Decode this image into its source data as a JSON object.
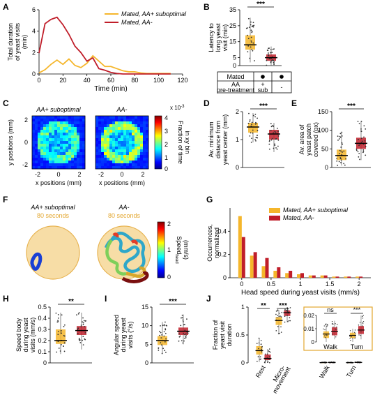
{
  "colors": {
    "orange": "#F5B62B",
    "red": "#C01E2A",
    "orange_text": "#E3A72F",
    "patch": "#F7DDA6",
    "patch_edge": "#E7B24E"
  },
  "panels": {
    "A": {
      "label": "A"
    },
    "B": {
      "label": "B"
    },
    "C": {
      "label": "C"
    },
    "D": {
      "label": "D"
    },
    "E": {
      "label": "E"
    },
    "F": {
      "label": "F"
    },
    "G": {
      "label": "G"
    },
    "H": {
      "label": "H"
    },
    "I": {
      "label": "I"
    },
    "J": {
      "label": "J"
    }
  },
  "panelB_table": {
    "row1": "Mated",
    "row2a": "AA",
    "row2b": "pre-treatment",
    "plus": "+",
    "sub": "sub",
    "minus": "-"
  },
  "panelC": {
    "title_left": "AA+ suboptimal",
    "title_right": "AA-",
    "ylabel": "y positions (mm)",
    "xlabel": "x positions (mm)",
    "xticks": [
      "-2",
      "0",
      "2"
    ],
    "yticks": [
      "2",
      "0",
      "-2"
    ],
    "cbar_exp": "x 10",
    "cbar_exp_sup": "-3",
    "cbar_label1": "Fraction of time",
    "cbar_label2": "in xy bin",
    "cbar_ticks": [
      "4",
      "3",
      "2",
      "1",
      "0"
    ]
  },
  "panelF": {
    "title_left": "AA+ suboptimal",
    "title_right": "AA-",
    "sub_left": "80 seconds",
    "sub_right": "80 seconds",
    "cbar_label": "Speed",
    "cbar_sub": "head",
    "cbar_unit": "(mm/s)",
    "cbar_ticks": [
      "2",
      "1",
      "0"
    ]
  },
  "panelJ": {
    "inset_sig_walk": "ns",
    "inset_sig_turn": "***",
    "inset_cats": [
      "Walk",
      "Turn"
    ],
    "inset_yticks": [
      "0.02",
      "0.01",
      "0"
    ]
  },
  "chart_data": [
    {
      "panel": "A",
      "type": "line",
      "xlabel": "Time (min)",
      "ylabel": "Total duration of yeast visits (min)",
      "xlim": [
        0,
        120
      ],
      "ylim": [
        0,
        6
      ],
      "xticks": [
        0,
        20,
        40,
        60,
        80,
        100,
        120
      ],
      "yticks": [
        0,
        2,
        4,
        6
      ],
      "legend_position": "top-right",
      "series": [
        {
          "name": "Mated, AA+ suboptimal",
          "color": "#F5B62B",
          "x": [
            0,
            5,
            10,
            15,
            20,
            25,
            30,
            35,
            40,
            45,
            50,
            55,
            60,
            65,
            70,
            75,
            80,
            85,
            90,
            95,
            100,
            105,
            110
          ],
          "y": [
            0.1,
            0.4,
            0.9,
            1.3,
            0.9,
            1.4,
            0.8,
            0.6,
            1.0,
            1.7,
            1.2,
            0.7,
            0.7,
            0.5,
            0.3,
            0.2,
            0.2,
            0.1,
            0.05,
            0.05,
            0.05,
            0.05,
            0.05
          ]
        },
        {
          "name": "Mated, AA-",
          "color": "#C01E2A",
          "x": [
            0,
            5,
            10,
            15,
            20,
            25,
            30,
            35,
            40,
            45,
            50,
            55,
            60,
            65,
            70,
            75,
            80,
            85,
            90,
            95,
            100,
            105,
            110
          ],
          "y": [
            1.95,
            4.7,
            5.1,
            5.3,
            4.6,
            3.7,
            2.6,
            2.0,
            1.2,
            1.5,
            0.5,
            0.35,
            0.15,
            0.05,
            0.0,
            0.0,
            0.0,
            0.0,
            0.0,
            0.0,
            0.0,
            0.0,
            0.0
          ]
        }
      ]
    },
    {
      "panel": "B",
      "type": "box",
      "ylabel": "Latency to long yeast visit (min)",
      "ylim": [
        0,
        35
      ],
      "yticks": [
        0,
        5,
        15,
        25,
        35
      ],
      "significance": "***",
      "boxes": [
        {
          "group": "AA+ sub",
          "color": "#F5B62B",
          "q1": 10,
          "median": 13,
          "q3": 19,
          "whisker_low": 2,
          "whisker_high": 30
        },
        {
          "group": "AA-",
          "color": "#C01E2A",
          "q1": 3,
          "median": 5,
          "q3": 7,
          "whisker_low": 0,
          "whisker_high": 12
        }
      ]
    },
    {
      "panel": "C",
      "type": "heatmap",
      "xlim": [
        -2.5,
        2.5
      ],
      "ylim": [
        -2.5,
        2.5
      ],
      "clim": [
        0,
        0.004
      ]
    },
    {
      "panel": "D",
      "type": "box",
      "ylabel": "Av. minimum distance from yeast center (mm)",
      "ylim": [
        0,
        2
      ],
      "yticks": [
        0,
        1,
        2
      ],
      "significance": "***",
      "boxes": [
        {
          "group": "AA+ sub",
          "color": "#F5B62B",
          "q1": 1.25,
          "median": 1.45,
          "q3": 1.6,
          "whisker_low": 0.9,
          "whisker_high": 1.95
        },
        {
          "group": "AA-",
          "color": "#C01E2A",
          "q1": 1.0,
          "median": 1.2,
          "q3": 1.35,
          "whisker_low": 0.55,
          "whisker_high": 1.6
        }
      ]
    },
    {
      "panel": "E",
      "type": "box",
      "ylabel": "Av. area of yeast patch covered (px)",
      "ylim": [
        0,
        150
      ],
      "yticks": [
        0,
        50,
        100,
        150
      ],
      "significance": "***",
      "boxes": [
        {
          "group": "AA+ sub",
          "color": "#F5B62B",
          "q1": 20,
          "median": 32,
          "q3": 48,
          "whisker_low": 5,
          "whisker_high": 95
        },
        {
          "group": "AA-",
          "color": "#C01E2A",
          "q1": 50,
          "median": 65,
          "q3": 80,
          "whisker_low": 20,
          "whisker_high": 125
        }
      ]
    },
    {
      "panel": "G",
      "type": "bar",
      "xlabel": "Head speed during yeast visits (mm/s)",
      "ylabel": "Occurrences, normalized",
      "xlim": [
        -0.2,
        2.2
      ],
      "ylim": [
        0,
        0.6
      ],
      "xticks": [
        0,
        0.5,
        1,
        1.5,
        2
      ],
      "yticks": [
        0,
        0.2,
        0.4
      ],
      "legend_position": "top-right",
      "x": [
        0,
        0.2,
        0.4,
        0.6,
        0.8,
        1.0,
        1.2,
        1.4,
        1.6,
        1.8,
        2.0
      ],
      "series": [
        {
          "name": "Mated, AA+ suboptimal",
          "color": "#F5B62B",
          "values": [
            0.53,
            0.19,
            0.1,
            0.06,
            0.04,
            0.03,
            0.02,
            0.02,
            0.01,
            0.01,
            0.01
          ]
        },
        {
          "name": "Mated, AA-",
          "color": "#C01E2A",
          "values": [
            0.35,
            0.22,
            0.17,
            0.09,
            0.06,
            0.04,
            0.02,
            0.02,
            0.01,
            0.01,
            0.01
          ]
        }
      ]
    },
    {
      "panel": "H",
      "type": "box",
      "ylabel": "Speed body during yeast visits (mm/s)",
      "ylim": [
        0,
        0.5
      ],
      "yticks": [
        0,
        0.1,
        0.2,
        0.3,
        0.4,
        0.5
      ],
      "significance": "**",
      "boxes": [
        {
          "group": "AA+ sub",
          "color": "#F5B62B",
          "q1": 0.17,
          "median": 0.2,
          "q3": 0.3,
          "whisker_low": 0.08,
          "whisker_high": 0.45
        },
        {
          "group": "AA-",
          "color": "#C01E2A",
          "q1": 0.25,
          "median": 0.29,
          "q3": 0.33,
          "whisker_low": 0.12,
          "whisker_high": 0.45
        }
      ]
    },
    {
      "panel": "I",
      "type": "box",
      "ylabel": "Angular speed during yeast visits (°/s)",
      "ylim": [
        0,
        15
      ],
      "yticks": [
        0,
        5,
        10,
        15
      ],
      "significance": "***",
      "boxes": [
        {
          "group": "AA+ sub",
          "color": "#F5B62B",
          "q1": 4.8,
          "median": 6,
          "q3": 7.2,
          "whisker_low": 2.5,
          "whisker_high": 11
        },
        {
          "group": "AA-",
          "color": "#C01E2A",
          "q1": 7.5,
          "median": 8.5,
          "q3": 9.5,
          "whisker_low": 5,
          "whisker_high": 13
        }
      ]
    },
    {
      "panel": "J",
      "type": "box",
      "ylabel": "Fraction of yeast visit duration",
      "ylim": [
        0,
        1
      ],
      "yticks": [
        0,
        0.5,
        1
      ],
      "categories": [
        "Rest",
        "Micro-movement",
        "Walk",
        "Turn"
      ],
      "significance": [
        "**",
        "***"
      ],
      "groups": [
        {
          "category": "Rest",
          "color": "#F5B62B",
          "q1": 0.15,
          "median": 0.22,
          "q3": 0.3,
          "whisker_low": 0.02,
          "whisker_high": 0.45
        },
        {
          "category": "Rest",
          "color": "#C01E2A",
          "q1": 0.05,
          "median": 0.08,
          "q3": 0.15,
          "whisker_low": 0.0,
          "whisker_high": 0.25
        },
        {
          "category": "Micro-movement",
          "color": "#F5B62B",
          "q1": 0.68,
          "median": 0.76,
          "q3": 0.82,
          "whisker_low": 0.52,
          "whisker_high": 0.95
        },
        {
          "category": "Micro-movement",
          "color": "#C01E2A",
          "q1": 0.84,
          "median": 0.9,
          "q3": 0.94,
          "whisker_low": 0.73,
          "whisker_high": 1.0
        },
        {
          "category": "Walk",
          "color": "#F5B62B",
          "q1": 0.003,
          "median": 0.006,
          "q3": 0.008,
          "whisker_low": 0.0,
          "whisker_high": 0.014
        },
        {
          "category": "Walk",
          "color": "#C01E2A",
          "q1": 0.005,
          "median": 0.008,
          "q3": 0.011,
          "whisker_low": 0.002,
          "whisker_high": 0.016
        },
        {
          "category": "Turn",
          "color": "#F5B62B",
          "q1": 0.003,
          "median": 0.005,
          "q3": 0.007,
          "whisker_low": 0.0,
          "whisker_high": 0.01
        },
        {
          "category": "Turn",
          "color": "#C01E2A",
          "q1": 0.006,
          "median": 0.009,
          "q3": 0.012,
          "whisker_low": 0.002,
          "whisker_high": 0.02
        }
      ]
    }
  ]
}
